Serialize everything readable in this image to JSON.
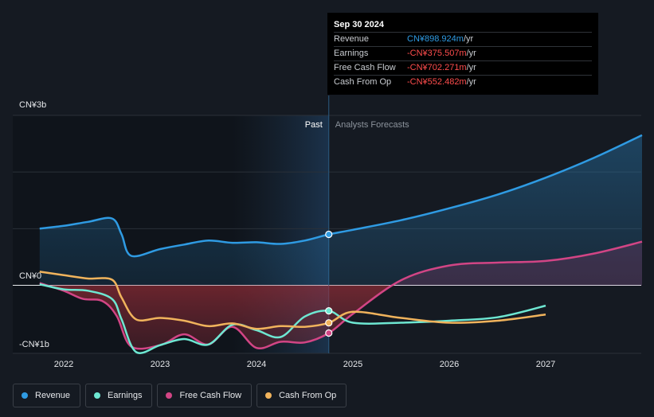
{
  "tooltip": {
    "date": "Sep 30 2024",
    "rows": [
      {
        "name": "Revenue",
        "value": "CN¥898.924m",
        "unit": " /yr",
        "color": "#2f9be3"
      },
      {
        "name": "Earnings",
        "value": "-CN¥375.507m",
        "unit": " /yr",
        "color": "#ff4d4d"
      },
      {
        "name": "Free Cash Flow",
        "value": "-CN¥702.271m",
        "unit": " /yr",
        "color": "#ff4d4d"
      },
      {
        "name": "Cash From Op",
        "value": "-CN¥552.482m",
        "unit": " /yr",
        "color": "#ff4d4d"
      }
    ]
  },
  "regions": {
    "past": "Past",
    "forecast": "Analysts Forecasts"
  },
  "legend": [
    {
      "label": "Revenue",
      "color": "#2f9be3"
    },
    {
      "label": "Earnings",
      "color": "#6ee7d2"
    },
    {
      "label": "Free Cash Flow",
      "color": "#d24585"
    },
    {
      "label": "Cash From Op",
      "color": "#f0b35c"
    }
  ],
  "chart_data": {
    "type": "line",
    "y_ticks": [
      {
        "value": 3000,
        "label": "CN¥3b"
      },
      {
        "value": 0,
        "label": "CN¥0"
      },
      {
        "value": -1000,
        "label": "-CN¥1b"
      }
    ],
    "x_ticks": [
      {
        "value": 2022,
        "label": "2022"
      },
      {
        "value": 2023,
        "label": "2023"
      },
      {
        "value": 2024,
        "label": "2024"
      },
      {
        "value": 2025,
        "label": "2025"
      },
      {
        "value": 2026,
        "label": "2026"
      },
      {
        "value": 2027,
        "label": "2027"
      }
    ],
    "xlim": [
      2021.5,
      2028.0
    ],
    "ylim": [
      -1000,
      3000
    ],
    "past_end": 2024.75,
    "series": [
      {
        "name": "Revenue",
        "color": "#2f9be3",
        "fill": true,
        "points": [
          [
            2021.75,
            1000
          ],
          [
            2022.0,
            1050
          ],
          [
            2022.25,
            1120
          ],
          [
            2022.5,
            1180
          ],
          [
            2022.6,
            900
          ],
          [
            2022.7,
            520
          ],
          [
            2023.0,
            640
          ],
          [
            2023.25,
            720
          ],
          [
            2023.5,
            790
          ],
          [
            2023.75,
            750
          ],
          [
            2024.0,
            760
          ],
          [
            2024.25,
            730
          ],
          [
            2024.5,
            790
          ],
          [
            2024.75,
            899
          ],
          [
            2025.0,
            980
          ],
          [
            2025.5,
            1150
          ],
          [
            2026.0,
            1360
          ],
          [
            2026.5,
            1600
          ],
          [
            2027.0,
            1900
          ],
          [
            2027.5,
            2250
          ],
          [
            2028.0,
            2650
          ]
        ]
      },
      {
        "name": "Free Cash Flow",
        "color": "#d24585",
        "fill": true,
        "points": [
          [
            2021.75,
            40
          ],
          [
            2022.0,
            -80
          ],
          [
            2022.2,
            -200
          ],
          [
            2022.4,
            -230
          ],
          [
            2022.55,
            -450
          ],
          [
            2022.7,
            -900
          ],
          [
            2023.0,
            -880
          ],
          [
            2023.25,
            -720
          ],
          [
            2023.5,
            -870
          ],
          [
            2023.75,
            -610
          ],
          [
            2024.0,
            -920
          ],
          [
            2024.25,
            -830
          ],
          [
            2024.5,
            -840
          ],
          [
            2024.75,
            -702
          ],
          [
            2025.0,
            -420
          ],
          [
            2025.5,
            90
          ],
          [
            2026.0,
            350
          ],
          [
            2026.5,
            400
          ],
          [
            2027.0,
            430
          ],
          [
            2027.5,
            560
          ],
          [
            2028.0,
            770
          ]
        ]
      },
      {
        "name": "Earnings",
        "color": "#6ee7d2",
        "fill": false,
        "points": [
          [
            2021.75,
            20
          ],
          [
            2022.0,
            -60
          ],
          [
            2022.25,
            -80
          ],
          [
            2022.5,
            -200
          ],
          [
            2022.6,
            -500
          ],
          [
            2022.75,
            -980
          ],
          [
            2023.0,
            -880
          ],
          [
            2023.25,
            -790
          ],
          [
            2023.5,
            -870
          ],
          [
            2023.75,
            -580
          ],
          [
            2024.0,
            -660
          ],
          [
            2024.25,
            -760
          ],
          [
            2024.5,
            -460
          ],
          [
            2024.75,
            -376
          ],
          [
            2025.0,
            -550
          ],
          [
            2025.5,
            -550
          ],
          [
            2026.0,
            -520
          ],
          [
            2026.5,
            -470
          ],
          [
            2027.0,
            -300
          ]
        ]
      },
      {
        "name": "Cash From Op",
        "color": "#f0b35c",
        "fill": false,
        "points": [
          [
            2021.75,
            240
          ],
          [
            2022.0,
            180
          ],
          [
            2022.25,
            120
          ],
          [
            2022.5,
            100
          ],
          [
            2022.6,
            -180
          ],
          [
            2022.75,
            -500
          ],
          [
            2023.0,
            -480
          ],
          [
            2023.25,
            -520
          ],
          [
            2023.5,
            -600
          ],
          [
            2023.75,
            -560
          ],
          [
            2024.0,
            -640
          ],
          [
            2024.25,
            -600
          ],
          [
            2024.5,
            -610
          ],
          [
            2024.75,
            -552
          ],
          [
            2025.0,
            -390
          ],
          [
            2025.5,
            -480
          ],
          [
            2026.0,
            -550
          ],
          [
            2026.5,
            -520
          ],
          [
            2027.0,
            -430
          ]
        ]
      }
    ]
  }
}
